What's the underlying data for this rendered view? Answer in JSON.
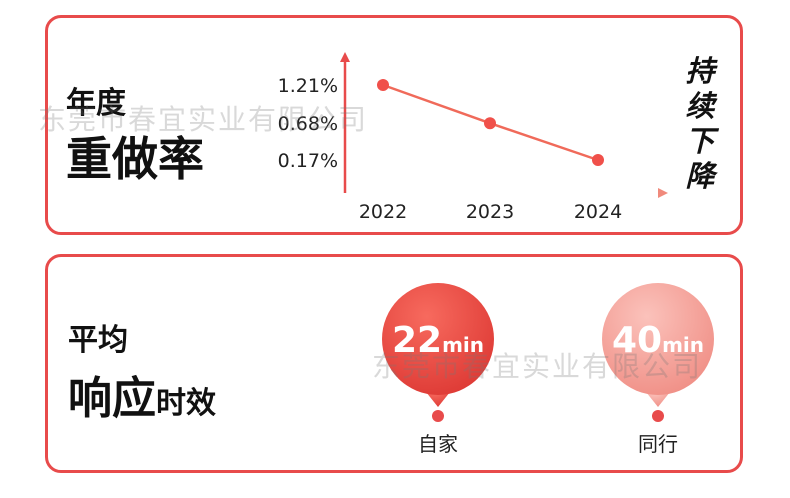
{
  "colors": {
    "accent": "#e84b4b",
    "line": "#f06a5a",
    "pin_dark": "#e8463f",
    "pin_light": "#f6a39b"
  },
  "section1": {
    "title_small": "年度",
    "title_big": "重做率",
    "trend_text": [
      "持",
      "续",
      "下",
      "降"
    ]
  },
  "section2": {
    "title_small": "平均",
    "title_big": "响应",
    "title_suffix": "时效"
  },
  "watermark_text": "东莞市春宜实业有限公司",
  "chart_data": [
    {
      "type": "line",
      "categories": [
        "2022",
        "2023",
        "2024"
      ],
      "series": [
        {
          "values": [
            1.21,
            0.68,
            0.17
          ]
        }
      ],
      "y_tick_labels": [
        "1.21%",
        "0.68%",
        "0.17%"
      ],
      "unit": "%"
    },
    {
      "type": "scatter",
      "categories": [
        "自家",
        "同行"
      ],
      "values": [
        22,
        40
      ],
      "value_labels": [
        "22",
        "40"
      ],
      "unit": "min"
    }
  ]
}
